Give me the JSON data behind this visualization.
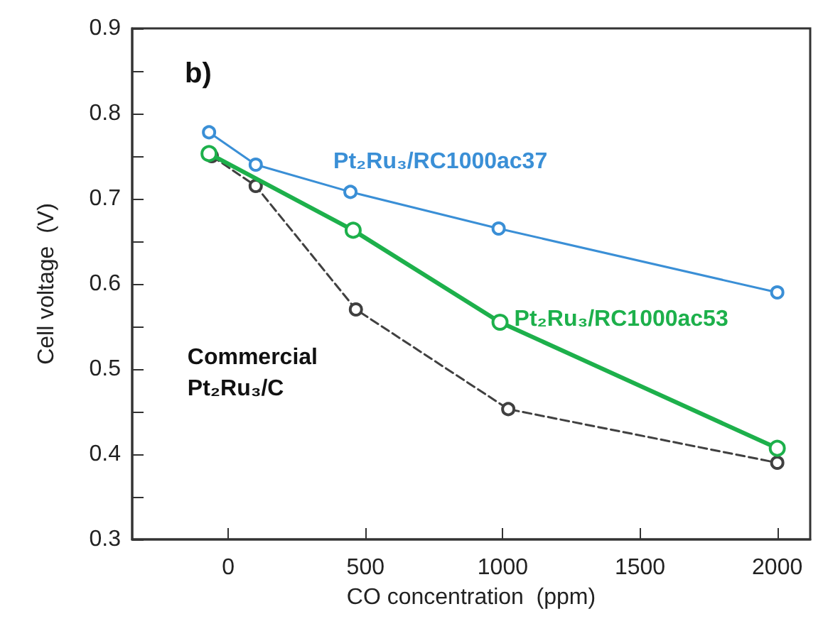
{
  "chart_data": {
    "type": "line",
    "xlabel": "CO concentration  (ppm)",
    "ylabel": "Cell voltage  (V)",
    "annotations": [
      "b)"
    ],
    "xlim": [
      -350,
      2120
    ],
    "xticks": [
      0,
      500,
      1000,
      1500,
      2000
    ],
    "ylim": [
      0.3,
      0.9
    ],
    "yticks": [
      0.3,
      {
        "value": 0.35,
        "label": null
      },
      0.4,
      {
        "value": 0.45,
        "label": null
      },
      0.5,
      {
        "value": 0.55,
        "label": null
      },
      0.6,
      {
        "value": 0.65,
        "label": null
      },
      0.7,
      {
        "value": 0.75,
        "label": null
      },
      0.8,
      {
        "value": 0.85,
        "label": null
      },
      0.9
    ],
    "grid": false,
    "legend": false,
    "marker": "circle",
    "series": [
      {
        "name": "Pt₂Ru₃/RC1000ac37",
        "color": "#3a8fd6",
        "line_style": "solid",
        "x": [
          -70,
          100,
          445,
          985,
          2000
        ],
        "values": [
          0.778,
          0.74,
          0.708,
          0.665,
          0.59
        ]
      },
      {
        "name": "Pt₂Ru₃/RC1000ac53",
        "color": "#1db04b",
        "line_style": "solid",
        "x": [
          -70,
          455,
          990,
          2000
        ],
        "values": [
          0.753,
          0.663,
          0.555,
          0.407
        ]
      },
      {
        "name": "Commercial\nPt₂Ru₃/C",
        "color": "#404040",
        "line_style": "dashed",
        "x": [
          -60,
          100,
          465,
          1020,
          2000
        ],
        "values": [
          0.75,
          0.715,
          0.57,
          0.453,
          0.39
        ]
      }
    ]
  }
}
